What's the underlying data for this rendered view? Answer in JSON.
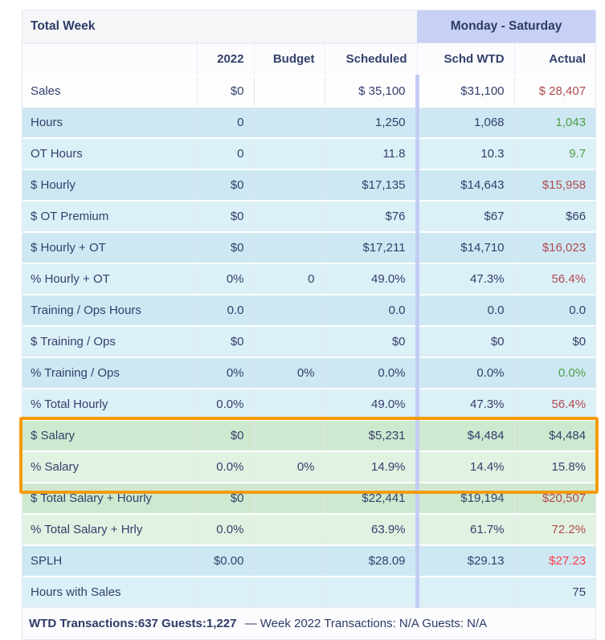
{
  "colors": {
    "accent_highlight": "#f49b0b",
    "negative_value": "#b04b4e",
    "negative_bright": "#fb3a4c",
    "positive_value": "#4d9e43",
    "header_band_purple": "#c7d1f6",
    "divider_band_purple": "#c3cdf4",
    "row_blue_dark": "#cde8f3",
    "row_blue_light": "#dcf0f8",
    "row_green_dark": "#cfe9d0",
    "row_green_light": "#e1f2e2"
  },
  "header": {
    "total_week_label": "Total Week",
    "monday_saturday_label": "Monday - Saturday",
    "columns": [
      "",
      "2022",
      "Budget",
      "Scheduled",
      "Schd WTD",
      "Actual"
    ]
  },
  "table": {
    "rows": [
      {
        "label": "Sales",
        "c2022": "$0",
        "budget": "",
        "scheduled": "$ 35,100",
        "schd_wtd": "$31,100",
        "actual": "$ 28,407",
        "bg": "white",
        "actual_tone": "neg"
      },
      {
        "label": "Hours",
        "c2022": "0",
        "budget": "",
        "scheduled": "1,250",
        "schd_wtd": "1,068",
        "actual": "1,043",
        "bg": "blue-a",
        "actual_tone": "pos"
      },
      {
        "label": "OT Hours",
        "c2022": "0",
        "budget": "",
        "scheduled": "11.8",
        "schd_wtd": "10.3",
        "actual": "9.7",
        "bg": "blue-b",
        "actual_tone": "pos"
      },
      {
        "label": "$ Hourly",
        "c2022": "$0",
        "budget": "",
        "scheduled": "$17,135",
        "schd_wtd": "$14,643",
        "actual": "$15,958",
        "bg": "blue-a",
        "actual_tone": "neg"
      },
      {
        "label": "$ OT Premium",
        "c2022": "$0",
        "budget": "",
        "scheduled": "$76",
        "schd_wtd": "$67",
        "actual": "$66",
        "bg": "blue-b",
        "actual_tone": "none"
      },
      {
        "label": "$ Hourly + OT",
        "c2022": "$0",
        "budget": "",
        "scheduled": "$17,211",
        "schd_wtd": "$14,710",
        "actual": "$16,023",
        "bg": "blue-a",
        "actual_tone": "neg"
      },
      {
        "label": "% Hourly + OT",
        "c2022": "0%",
        "budget": "0",
        "scheduled": "49.0%",
        "schd_wtd": "47.3%",
        "actual": "56.4%",
        "bg": "blue-b",
        "actual_tone": "neg"
      },
      {
        "label": "Training / Ops Hours",
        "c2022": "0.0",
        "budget": "",
        "scheduled": "0.0",
        "schd_wtd": "0.0",
        "actual": "0.0",
        "bg": "blue-a",
        "actual_tone": "none"
      },
      {
        "label": "$ Training / Ops",
        "c2022": "$0",
        "budget": "",
        "scheduled": "$0",
        "schd_wtd": "$0",
        "actual": "$0",
        "bg": "blue-b",
        "actual_tone": "none"
      },
      {
        "label": "% Training / Ops",
        "c2022": "0%",
        "budget": "0%",
        "scheduled": "0.0%",
        "schd_wtd": "0.0%",
        "actual": "0.0%",
        "bg": "blue-a",
        "actual_tone": "pos"
      },
      {
        "label": "% Total Hourly",
        "c2022": "0.0%",
        "budget": "",
        "scheduled": "49.0%",
        "schd_wtd": "47.3%",
        "actual": "56.4%",
        "bg": "blue-b",
        "actual_tone": "neg"
      },
      {
        "label": "$ Salary",
        "c2022": "$0",
        "budget": "",
        "scheduled": "$5,231",
        "schd_wtd": "$4,484",
        "actual": "$4,484",
        "bg": "green-a",
        "actual_tone": "none"
      },
      {
        "label": "% Salary",
        "c2022": "0.0%",
        "budget": "0%",
        "scheduled": "14.9%",
        "schd_wtd": "14.4%",
        "actual": "15.8%",
        "bg": "green-b",
        "actual_tone": "none"
      },
      {
        "label": "$ Total Salary + Hourly",
        "c2022": "$0",
        "budget": "",
        "scheduled": "$22,441",
        "schd_wtd": "$19,194",
        "actual": "$20,507",
        "bg": "green-a",
        "actual_tone": "neg"
      },
      {
        "label": "% Total Salary + Hrly",
        "c2022": "0.0%",
        "budget": "",
        "scheduled": "63.9%",
        "schd_wtd": "61.7%",
        "actual": "72.2%",
        "bg": "green-b",
        "actual_tone": "neg"
      },
      {
        "label": "SPLH",
        "c2022": "$0.00",
        "budget": "",
        "scheduled": "$28.09",
        "schd_wtd": "$29.13",
        "actual": "$27.23",
        "bg": "blue-a",
        "actual_tone": "neg_bright"
      },
      {
        "label": "Hours with Sales",
        "c2022": "",
        "budget": "",
        "scheduled": "",
        "schd_wtd": "",
        "actual": "75",
        "bg": "blue-b",
        "actual_tone": "none"
      }
    ]
  },
  "highlight": {
    "rows": [
      "$ Salary",
      "% Salary"
    ],
    "row_indexes": [
      11,
      12
    ],
    "color": "#f49b0b"
  },
  "footer": {
    "bold_text": "WTD Transactions:637  Guests:1,227",
    "rest_text": "— Week 2022 Transactions: N/A  Guests: N/A"
  }
}
